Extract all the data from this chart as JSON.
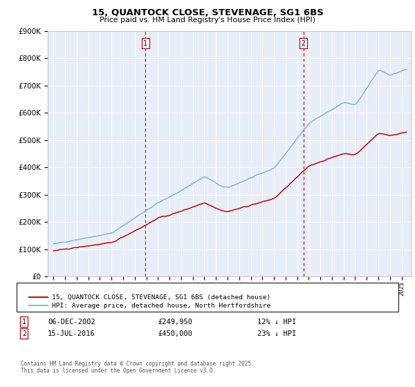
{
  "title": "15, QUANTOCK CLOSE, STEVENAGE, SG1 6BS",
  "subtitle": "Price paid vs. HM Land Registry's House Price Index (HPI)",
  "legend_property": "15, QUANTOCK CLOSE, STEVENAGE, SG1 6BS (detached house)",
  "legend_hpi": "HPI: Average price, detached house, North Hertfordshire",
  "footnote": "Contains HM Land Registry data © Crown copyright and database right 2025.\nThis data is licensed under the Open Government Licence v3.0.",
  "transaction1_date": "06-DEC-2002",
  "transaction1_price": "£249,950",
  "transaction1_hpi": "12% ↓ HPI",
  "transaction2_date": "15-JUL-2016",
  "transaction2_price": "£450,000",
  "transaction2_hpi": "23% ↓ HPI",
  "vline1_x": 2002.92,
  "vline2_x": 2016.54,
  "ylim_min": 0,
  "ylim_max": 900000,
  "xlim_min": 1994.5,
  "xlim_max": 2025.8,
  "property_color": "#cc0000",
  "hpi_color": "#7ab8d9",
  "vline_color": "#cc0000",
  "background_color": "#e8eef8"
}
